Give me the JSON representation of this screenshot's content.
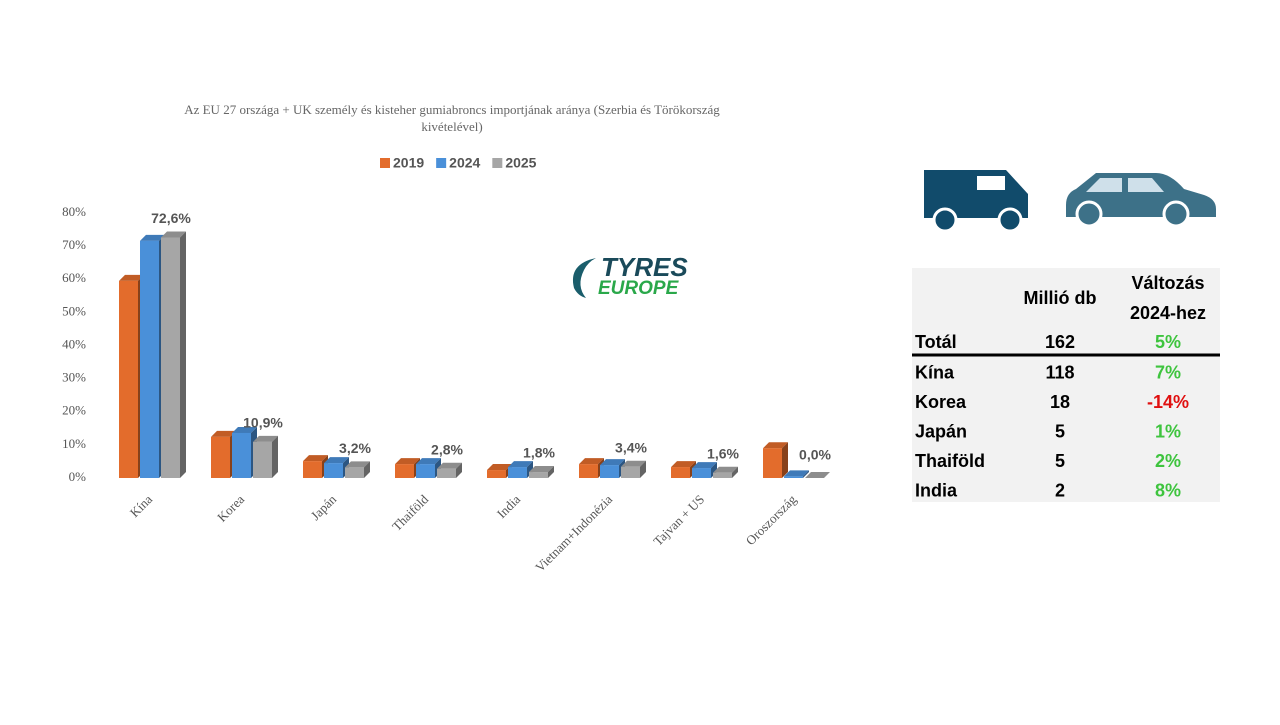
{
  "chart_data": {
    "type": "bar3d",
    "title": "Az EU 27 országa + UK személy és kisteher gumiabroncs importjának aránya (Szerbia és Törökország kivételével)",
    "categories": [
      "Kína",
      "Korea",
      "Japán",
      "Thaiföld",
      "India",
      "Vietnam+Indonézia",
      "Tajvan + US",
      "Oroszország"
    ],
    "series": [
      {
        "name": "2019",
        "color": "#e36c2c",
        "values": [
          59.5,
          12.4,
          5.1,
          4.2,
          2.4,
          4.2,
          3.3,
          9
        ]
      },
      {
        "name": "2024",
        "color": "#4a90d9",
        "values": [
          71.6,
          13.6,
          4.5,
          4.2,
          3.3,
          3.9,
          3,
          0.5
        ]
      },
      {
        "name": "2025",
        "color": "#a6a6a6",
        "values": [
          72.6,
          10.9,
          3.2,
          2.8,
          1.8,
          3.4,
          1.6,
          0
        ],
        "value_labels": [
          "72,6%",
          "10,9%",
          "3,2%",
          "2,8%",
          "1,8%",
          "3,4%",
          "1,6%",
          "0,0%"
        ]
      }
    ],
    "ylim": [
      0,
      80
    ],
    "yticks": [
      {
        "value": 0,
        "label": "0%"
      },
      {
        "value": 10,
        "label": "10%"
      },
      {
        "value": 20,
        "label": "20%"
      },
      {
        "value": 30,
        "label": "30%"
      },
      {
        "value": 40,
        "label": "40%"
      },
      {
        "value": 50,
        "label": "50%"
      },
      {
        "value": 60,
        "label": "60%"
      },
      {
        "value": 70,
        "label": "70%"
      },
      {
        "value": 80,
        "label": "80%"
      }
    ],
    "grid": false,
    "legend": "top"
  },
  "logo": {
    "line1": "TYRES",
    "line2": "EUROPE"
  },
  "table": {
    "header": [
      "Millió db",
      "Változás",
      "2024-hez"
    ],
    "positive_color": "#3ec43e",
    "negative_color": "#e01010",
    "rows": [
      [
        "Totál",
        "162",
        "5%"
      ],
      [
        "Kína",
        "118",
        "7%"
      ],
      [
        "Korea",
        "18",
        "-14%"
      ],
      [
        "Japán",
        "5",
        "1%"
      ],
      [
        "Thaiföld",
        "5",
        "2%"
      ],
      [
        "India",
        "2",
        "8%"
      ]
    ]
  }
}
